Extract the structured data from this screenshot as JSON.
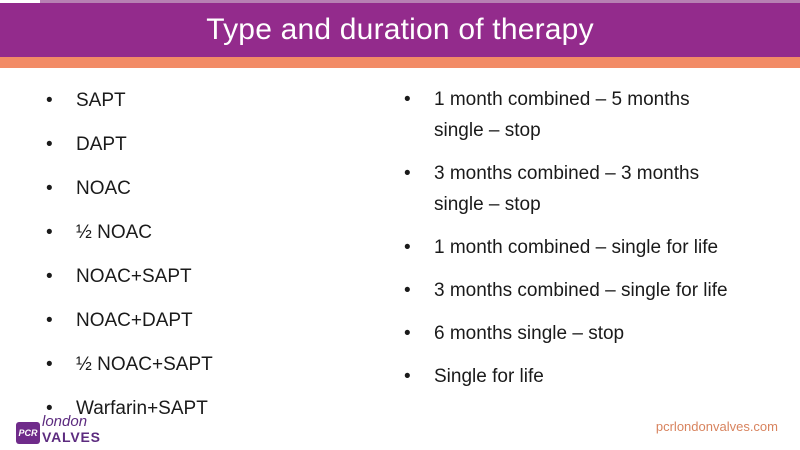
{
  "slide": {
    "title": "Type and duration of therapy",
    "left_column": {
      "items": [
        "SAPT",
        "DAPT",
        "NOAC",
        "½ NOAC",
        "NOAC+SAPT",
        "NOAC+DAPT",
        "½ NOAC+SAPT",
        "Warfarin+SAPT"
      ]
    },
    "right_column": {
      "items": [
        "1 month combined – 5 months single – stop",
        "3 months combined – 3 months single – stop",
        "1 month combined – single for life",
        "3 months combined – single for life",
        "6 months single – stop",
        "Single for life"
      ]
    },
    "footer": {
      "logo": {
        "abbr": "PCR",
        "city": "london",
        "name": "VALVES"
      },
      "website": "pcrlondonvalves.com"
    },
    "colors": {
      "header_purple": "#932b8c",
      "accent_orange": "#f28b66",
      "logo_purple": "#5c2b7f",
      "footer_link_orange": "#d8835e",
      "body_text": "#1a1a1a"
    }
  }
}
